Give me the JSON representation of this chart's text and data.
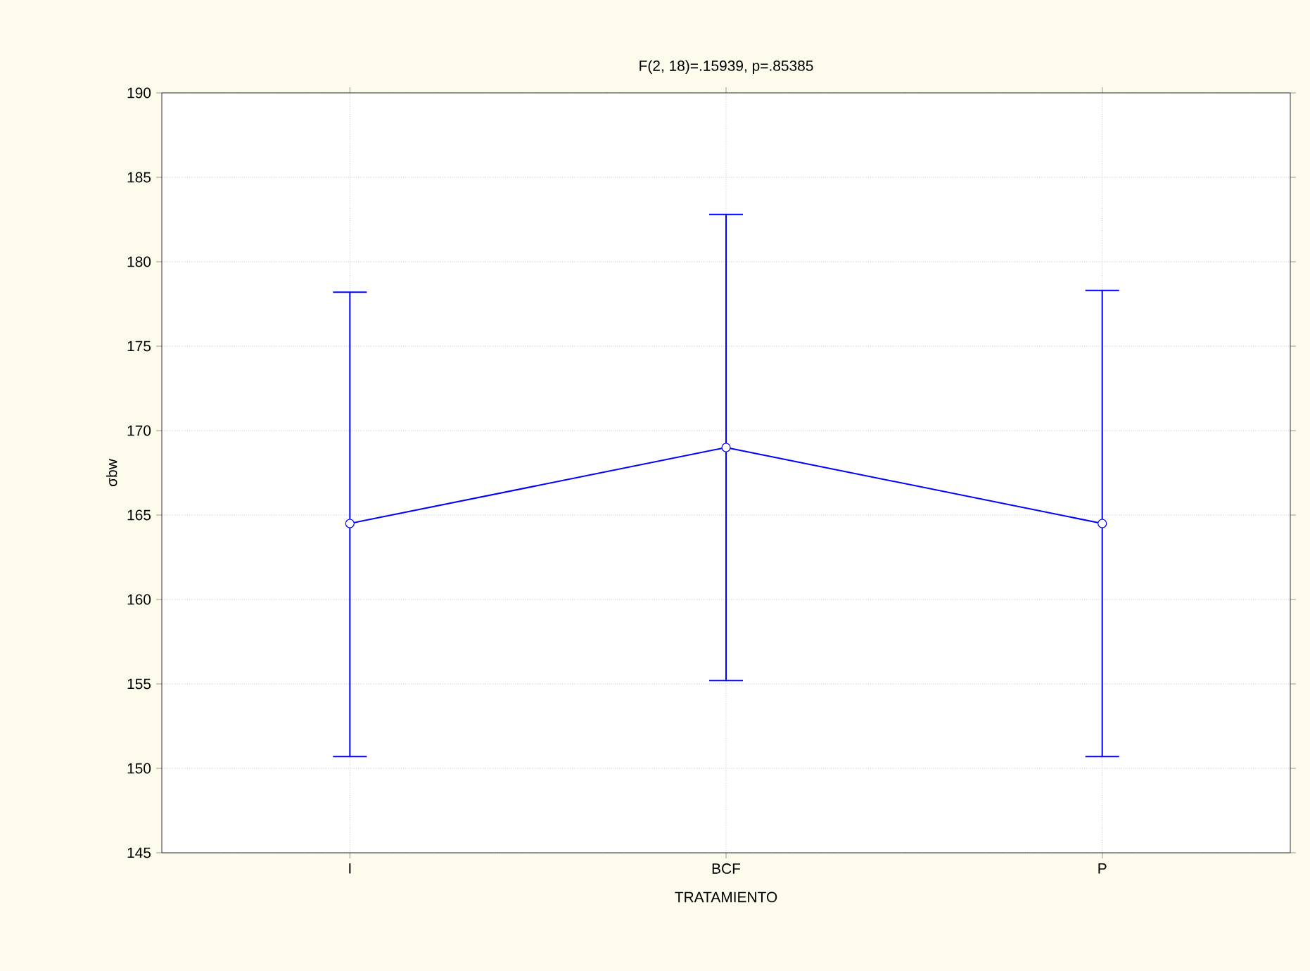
{
  "chart_data": {
    "type": "line",
    "title": "F(2, 18)=.15939, p=.85385",
    "xlabel": "TRATAMIENTO",
    "ylabel": "σbw",
    "categories": [
      "I",
      "BCF",
      "P"
    ],
    "series": [
      {
        "color": "#0000ff",
        "values": [
          164.5,
          169.0,
          164.5
        ],
        "errors": [
          [
            150.7,
            178.2
          ],
          [
            155.2,
            182.8
          ],
          [
            150.7,
            178.3
          ]
        ]
      }
    ],
    "ylim": [
      145,
      190
    ],
    "yticks": [
      145,
      150,
      155,
      160,
      165,
      170,
      175,
      180,
      185,
      190
    ],
    "grid": true,
    "marker": "circle",
    "line_style": "solid"
  }
}
